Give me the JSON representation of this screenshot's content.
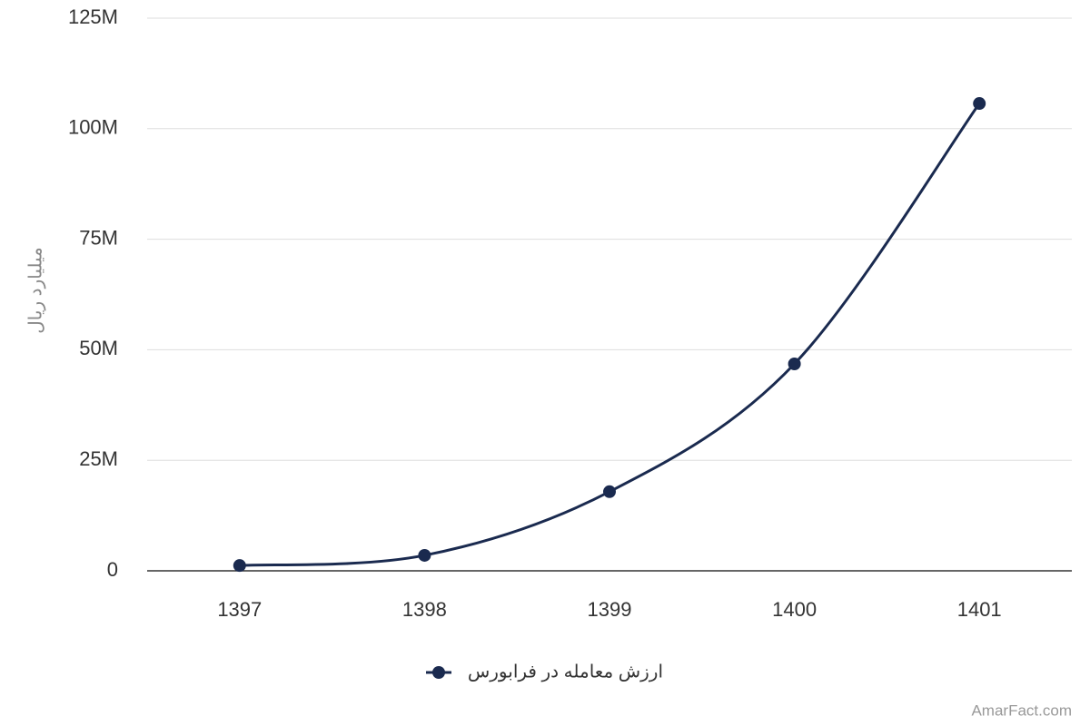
{
  "chart_data": {
    "type": "line",
    "y_label": "میلیارد ریال",
    "categories": [
      "1397",
      "1398",
      "1399",
      "1400",
      "1401"
    ],
    "series": [
      {
        "name": "ارزش معامله در فرابورس",
        "color": "#1a2a4f",
        "values": [
          1200000,
          3500000,
          17900000,
          46800000,
          105700000
        ]
      }
    ],
    "ylim": [
      0,
      125000000
    ],
    "yticks": [
      0,
      {
        "value": 25000000,
        "label": "25M"
      },
      {
        "value": 50000000,
        "label": "50M"
      },
      {
        "value": 75000000,
        "label": "75M"
      },
      {
        "value": 100000000,
        "label": "100M"
      },
      {
        "value": 125000000,
        "label": "125M"
      }
    ],
    "grid": true,
    "smooth": true,
    "legend": "bottom",
    "credit": "AmarFact.com"
  }
}
